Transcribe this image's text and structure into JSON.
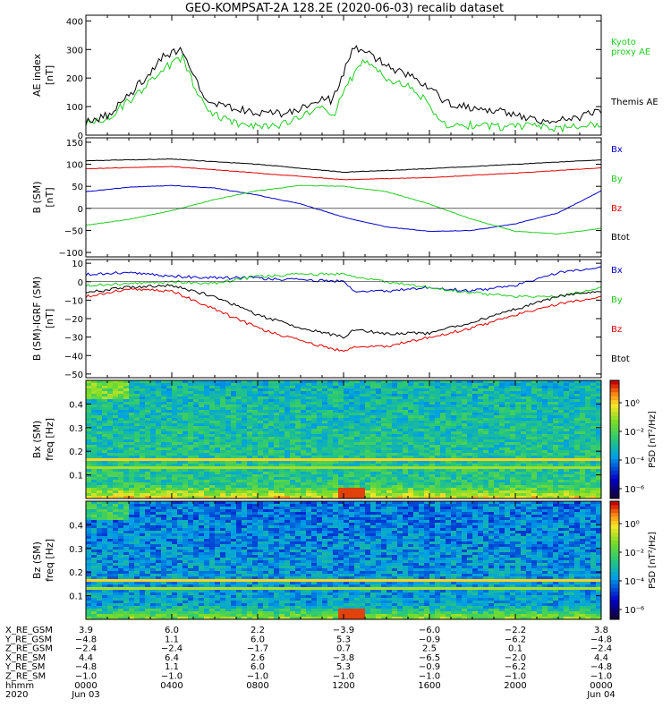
{
  "title": "GEO-KOMPSAT-2A 128.2E (2020-06-03) recalib dataset",
  "colors": {
    "black": "#000000",
    "red": "#e00000",
    "green": "#22cc22",
    "blue": "#0000cc"
  },
  "chart_data": [
    {
      "id": "ae",
      "type": "line",
      "ylabel": "AE index\n[nT]",
      "ylim": [
        0,
        420
      ],
      "yticks": [
        0,
        100,
        200,
        300,
        400
      ],
      "xlim_hours": [
        0,
        24
      ],
      "series": [
        {
          "name": "Kyoto proxy AE",
          "color": "#22cc22",
          "x": [
            0,
            1,
            2,
            2.5,
            3,
            3.5,
            4,
            4.5,
            5,
            5.5,
            6,
            7,
            8,
            9,
            10,
            11,
            11.5,
            12,
            12.5,
            13,
            13.5,
            14,
            15,
            16,
            16.5,
            17,
            18,
            19,
            20,
            21,
            22,
            23,
            24
          ],
          "y": [
            40,
            60,
            120,
            150,
            190,
            230,
            250,
            270,
            180,
            110,
            70,
            40,
            30,
            35,
            60,
            100,
            60,
            160,
            210,
            260,
            240,
            200,
            170,
            110,
            40,
            30,
            35,
            30,
            30,
            30,
            25,
            30,
            40
          ]
        },
        {
          "name": "Themis AE",
          "color": "#000000",
          "x": [
            0,
            1,
            2,
            2.5,
            3,
            3.5,
            4,
            4.5,
            5,
            5.5,
            6,
            7,
            8,
            9,
            10,
            11,
            11.5,
            12,
            12.5,
            13,
            13.5,
            14,
            15,
            16,
            16.5,
            17,
            18,
            19,
            20,
            21,
            22,
            23,
            24
          ],
          "y": [
            45,
            70,
            140,
            180,
            220,
            270,
            290,
            300,
            210,
            140,
            110,
            90,
            80,
            75,
            95,
            130,
            120,
            220,
            310,
            290,
            270,
            240,
            210,
            170,
            130,
            110,
            95,
            90,
            70,
            50,
            55,
            60,
            90
          ]
        }
      ]
    },
    {
      "id": "b",
      "type": "line",
      "ylabel": "B (SM)\n[nT]",
      "ylim": [
        -110,
        160
      ],
      "yticks": [
        -100,
        -50,
        0,
        50,
        100,
        150
      ],
      "series": [
        {
          "name": "Btot",
          "color": "#000000",
          "x": [
            0,
            4,
            8,
            12,
            16,
            20,
            24
          ],
          "y": [
            108,
            112,
            100,
            82,
            90,
            100,
            110
          ]
        },
        {
          "name": "Bx",
          "color": "#0000cc",
          "x": [
            0,
            2,
            4,
            6,
            8,
            10,
            12,
            14,
            16,
            18,
            20,
            22,
            24
          ],
          "y": [
            38,
            48,
            52,
            46,
            30,
            10,
            -20,
            -42,
            -52,
            -50,
            -35,
            -10,
            40
          ]
        },
        {
          "name": "By",
          "color": "#22cc22",
          "x": [
            0,
            2,
            4,
            6,
            8,
            10,
            12,
            14,
            16,
            18,
            20,
            22,
            24
          ],
          "y": [
            -38,
            -25,
            -5,
            20,
            40,
            52,
            50,
            38,
            10,
            -25,
            -52,
            -58,
            -45
          ]
        },
        {
          "name": "Bz",
          "color": "#e00000",
          "x": [
            0,
            4,
            8,
            12,
            16,
            20,
            24
          ],
          "y": [
            90,
            95,
            80,
            65,
            70,
            80,
            92
          ]
        }
      ]
    },
    {
      "id": "dbmodel",
      "type": "line",
      "ylabel": "B (SM)-IGRF (SM)\n[nT]",
      "ylim": [
        -52,
        12
      ],
      "yticks": [
        -50,
        -40,
        -30,
        -20,
        -10,
        0,
        10
      ],
      "series": [
        {
          "name": "Bx",
          "color": "#0000cc",
          "x": [
            0,
            2,
            4,
            6,
            8,
            10,
            12,
            12.5,
            14,
            16,
            18,
            20,
            22,
            24
          ],
          "y": [
            4,
            5,
            3,
            2,
            2,
            1,
            0,
            -5,
            -5,
            -3,
            -5,
            -2,
            5,
            8
          ]
        },
        {
          "name": "By",
          "color": "#22cc22",
          "x": [
            0,
            2,
            4,
            6,
            8,
            10,
            12,
            14,
            16,
            18,
            20,
            22,
            24
          ],
          "y": [
            -2,
            -1,
            0,
            -1,
            3,
            4,
            4,
            0,
            -3,
            -6,
            -8,
            -8,
            -3
          ]
        },
        {
          "name": "Btot",
          "color": "#000000",
          "x": [
            0,
            2,
            4,
            6,
            8,
            10,
            12,
            12.5,
            14,
            16,
            18,
            20,
            22,
            24
          ],
          "y": [
            -6,
            -3,
            -2,
            -8,
            -18,
            -25,
            -30,
            -26,
            -28,
            -28,
            -22,
            -15,
            -8,
            -5
          ]
        },
        {
          "name": "Bz",
          "color": "#e00000",
          "x": [
            0,
            2,
            4,
            6,
            8,
            10,
            12,
            12.5,
            14,
            16,
            18,
            20,
            22,
            24
          ],
          "y": [
            -8,
            -4,
            -5,
            -15,
            -25,
            -32,
            -38,
            -35,
            -35,
            -30,
            -25,
            -18,
            -12,
            -8
          ]
        }
      ]
    },
    {
      "id": "bx_spec",
      "type": "heatmap",
      "ylabel": "Bx (SM)\nfreq [Hz]",
      "ylim": [
        0,
        0.5
      ],
      "yticks": [
        0.1,
        0.2,
        0.3,
        0.4
      ],
      "colorbar_label": "PSD [nT²/Hz]",
      "colorbar_ticks": [
        "10⁰",
        "10⁻²",
        "10⁻⁴",
        "10⁻⁶"
      ]
    },
    {
      "id": "bz_spec",
      "type": "heatmap",
      "ylabel": "Bz (SM)\nfreq [Hz]",
      "ylim": [
        0,
        0.5
      ],
      "yticks": [
        0.1,
        0.2,
        0.3,
        0.4
      ],
      "colorbar_label": "PSD [nT²/Hz]",
      "colorbar_ticks": [
        "10⁰",
        "10⁻²",
        "10⁻⁴",
        "10⁻⁶"
      ]
    }
  ],
  "legends": {
    "ae": [
      {
        "text": "Kyoto\nproxy AE",
        "color": "#22cc22"
      },
      {
        "text": "Themis AE",
        "color": "#000000"
      }
    ],
    "b": [
      {
        "text": "Bx",
        "color": "#0000cc"
      },
      {
        "text": "By",
        "color": "#22cc22"
      },
      {
        "text": "Bz",
        "color": "#e00000"
      },
      {
        "text": "Btot",
        "color": "#000000"
      }
    ],
    "dbmodel": [
      {
        "text": "Bx",
        "color": "#0000cc"
      },
      {
        "text": "By",
        "color": "#22cc22"
      },
      {
        "text": "Bz",
        "color": "#e00000"
      },
      {
        "text": "Btot",
        "color": "#000000"
      }
    ]
  },
  "ephemeris": {
    "labels": [
      "X_RE_GSM",
      "Y_RE_GSM",
      "Z_RE_GSM",
      "X_RE_SM",
      "Y_RE_SM",
      "Z_RE_SM",
      "hhmm",
      "2020"
    ],
    "columns": [
      [
        "3.9",
        "-4.8",
        "-2.4",
        "4.4",
        "-4.8",
        "-1.0",
        "0000",
        "Jun 03"
      ],
      [
        "6.0",
        "1.1",
        "-2.4",
        "6.4",
        "1.1",
        "-1.0",
        "0400",
        ""
      ],
      [
        "2.2",
        "6.0",
        "-1.7",
        "2.6",
        "6.0",
        "-1.0",
        "0800",
        ""
      ],
      [
        "-3.9",
        "5.3",
        "0.7",
        "-3.8",
        "5.3",
        "-1.0",
        "1200",
        ""
      ],
      [
        "-6.0",
        "-0.9",
        "2.5",
        "-6.5",
        "-0.9",
        "-1.0",
        "1600",
        ""
      ],
      [
        "-2.2",
        "-6.2",
        "0.1",
        "-2.0",
        "-6.2",
        "-1.0",
        "2000",
        ""
      ],
      [
        "3.8",
        "-4.8",
        "-2.4",
        "4.4",
        "-4.8",
        "-1.0",
        "0000",
        "Jun 04"
      ]
    ]
  }
}
